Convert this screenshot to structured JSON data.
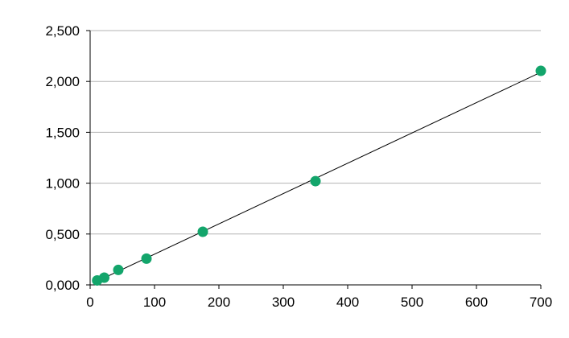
{
  "chart_data": {
    "type": "scatter",
    "title": "",
    "xlabel": "",
    "ylabel": "",
    "xlim": [
      0,
      700
    ],
    "ylim": [
      0,
      2.5
    ],
    "x_ticks": [
      "0",
      "100",
      "200",
      "300",
      "400",
      "500",
      "600",
      "700"
    ],
    "y_ticks": [
      "0,000",
      "0,500",
      "1,000",
      "1,500",
      "2,000",
      "2,500"
    ],
    "grid": "horizontal",
    "trendline": "linear",
    "point_color": "#13a56b",
    "trendline_color": "#000000",
    "points": [
      {
        "x": 10.94,
        "y": 0.044
      },
      {
        "x": 21.88,
        "y": 0.071
      },
      {
        "x": 43.75,
        "y": 0.147
      },
      {
        "x": 87.5,
        "y": 0.258
      },
      {
        "x": 175,
        "y": 0.522
      },
      {
        "x": 350,
        "y": 1.02
      },
      {
        "x": 700,
        "y": 2.104
      }
    ]
  }
}
